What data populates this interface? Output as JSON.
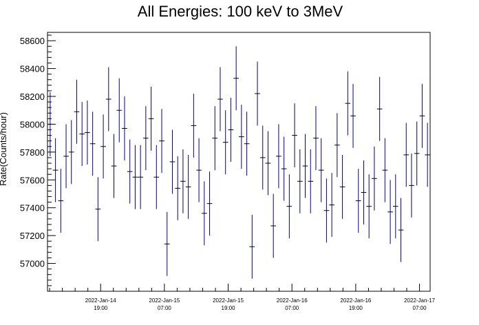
{
  "chart_data": {
    "type": "scatter",
    "title": "All Energies:  100 keV to 3MeV",
    "xlabel": "",
    "ylabel": "Rate(Counts/hour)",
    "ylim": [
      56800,
      58660
    ],
    "yticks": [
      57000,
      57200,
      57400,
      57600,
      57800,
      58000,
      58200,
      58400,
      58600
    ],
    "ytick_labels": [
      "57000",
      "57200",
      "57400",
      "57600",
      "57800",
      "58000",
      "58200",
      "58400",
      "58600"
    ],
    "x_unit": "hours",
    "xlim": [
      0,
      72
    ],
    "xticks": [
      {
        "pos": 10,
        "date": "2022-Jan-14",
        "time": "19:00"
      },
      {
        "pos": 22,
        "date": "2022-Jan-15",
        "time": "07:00"
      },
      {
        "pos": 34,
        "date": "2022-Jan-15",
        "time": "19:00"
      },
      {
        "pos": 46,
        "date": "2022-Jan-16",
        "time": "07:00"
      },
      {
        "pos": 58,
        "date": "2022-Jan-16",
        "time": "19:00"
      },
      {
        "pos": 70,
        "date": "2022-Jan-17",
        "time": "07:00"
      }
    ],
    "series_color": "#000080",
    "error": 230,
    "series": [
      {
        "values": [
          58000,
          57670,
          57450,
          57770,
          57800,
          58090,
          57930,
          57940,
          57860,
          57390,
          57840,
          58180,
          57700,
          58100,
          57970,
          57660,
          57620,
          57620,
          57900,
          58040,
          57620,
          57880,
          57140,
          57730,
          57540,
          57590,
          57550,
          57990,
          57670,
          57360,
          57430,
          57900,
          58180,
          57870,
          57960,
          58330,
          57910,
          57860,
          57120,
          58220,
          57760,
          57720,
          57270,
          57770,
          57680,
          57410,
          57920,
          57590,
          57700,
          57590,
          57900,
          57670,
          57380,
          57420,
          57850,
          57550,
          58150,
          58060,
          57450,
          57510,
          57410,
          57610,
          58110,
          57670,
          57370,
          57410,
          57240,
          57780,
          57560,
          57790,
          58060,
          57780
        ]
      }
    ]
  }
}
